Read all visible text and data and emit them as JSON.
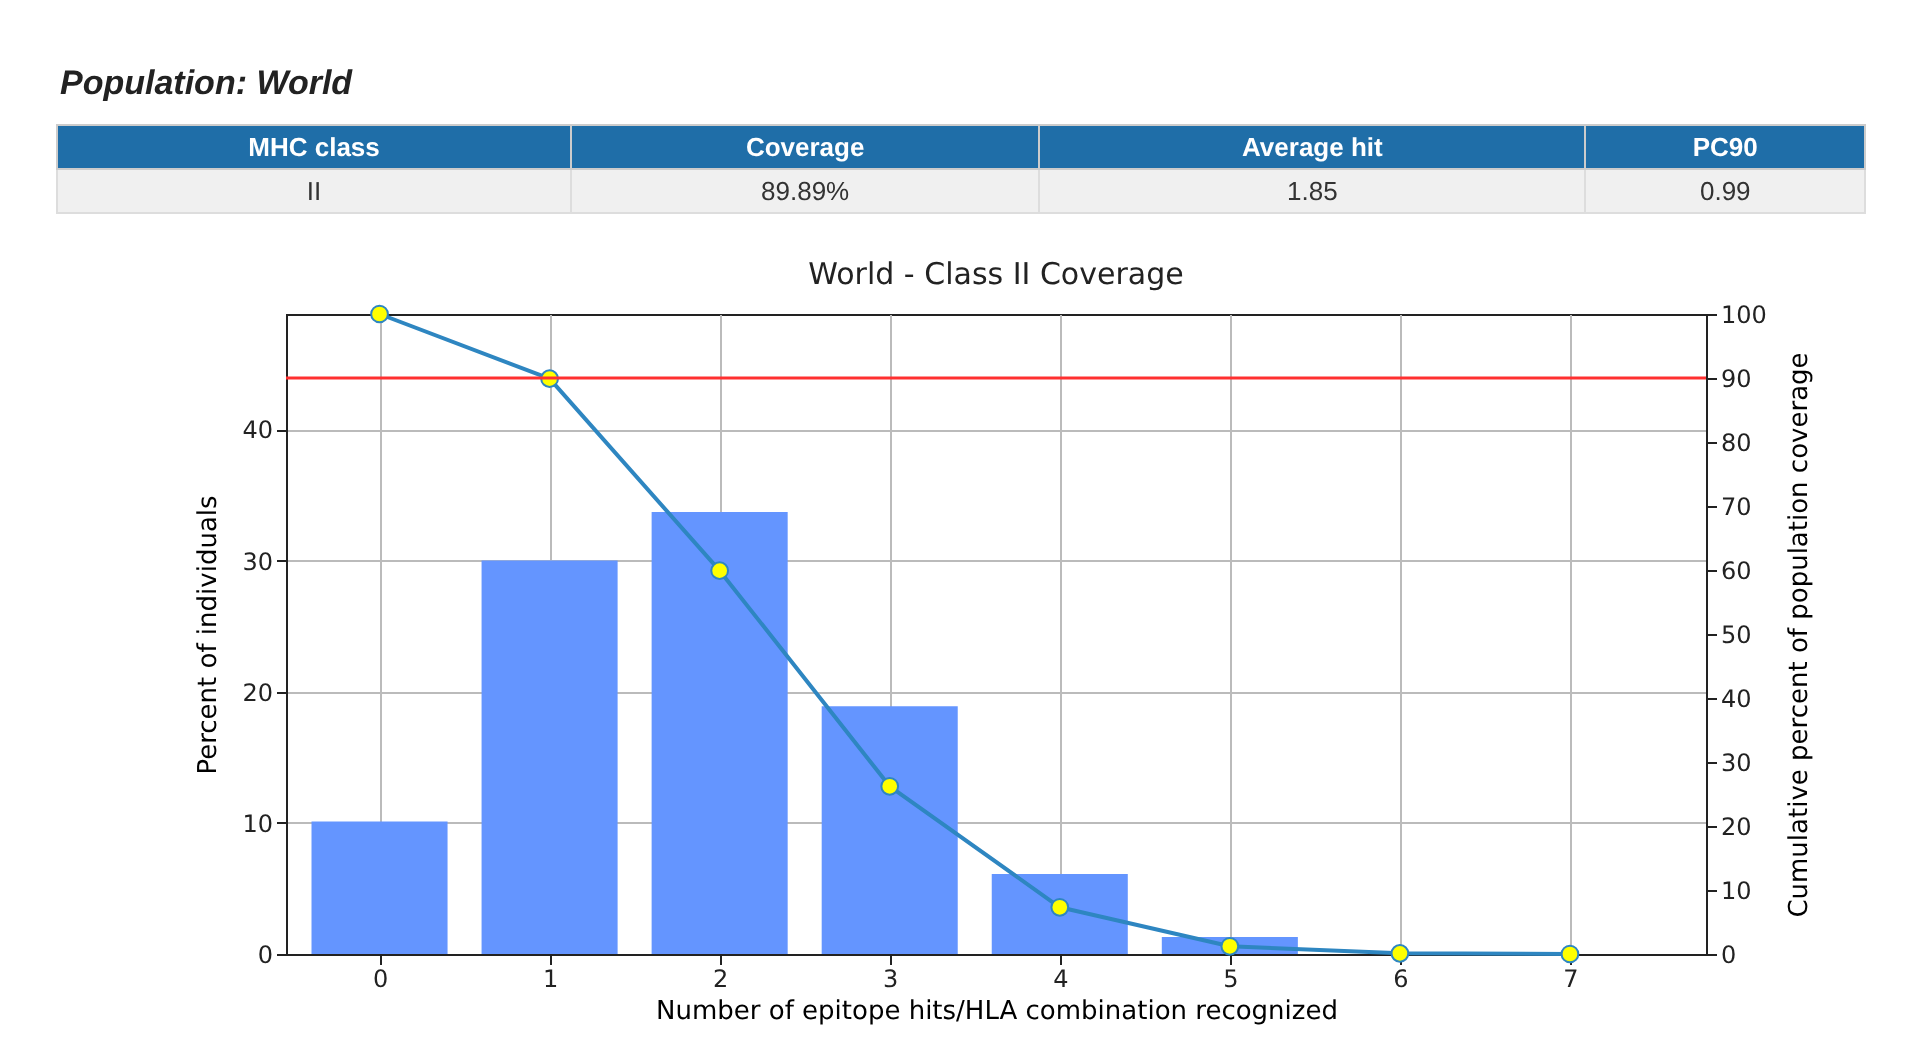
{
  "chart_data": {
    "type": "bar",
    "title": "World - Class II Coverage",
    "xlabel": "Number of epitope hits/HLA combination recognized",
    "ylabel": "Percent of individuals",
    "y2label": "Cumulative percent of population coverage",
    "annotations": [
      "Population: World",
      "MHC class",
      "Coverage",
      "Average hit",
      "PC90",
      "II",
      "89.89%",
      "1.85",
      "0.99"
    ],
    "x": [
      0,
      1,
      2,
      3,
      4,
      5,
      6,
      7
    ],
    "series": [
      {
        "color": "#6495ff",
        "values": [
          10.1,
          30.0,
          33.7,
          18.9,
          6.1,
          1.3,
          null,
          0
        ]
      },
      {
        "type": "line",
        "axis": "y2",
        "color": "#2e86c1",
        "values": [
          100,
          89.9,
          59.9,
          26.2,
          7.3,
          1.2,
          0.1,
          0
        ]
      }
    ],
    "marker": "circle",
    "xlim": [
      -0.55,
      7.8
    ],
    "xticks": [
      0,
      1,
      2,
      3,
      4,
      5,
      6,
      7
    ],
    "ylim": [
      0,
      48.8
    ],
    "yticks": [
      0,
      10,
      20,
      30,
      40
    ],
    "y2lim": [
      0,
      100
    ],
    "y2ticks": [
      0,
      10,
      20,
      30,
      40,
      50,
      60,
      70,
      80,
      90,
      100
    ],
    "ref_lines": [
      {
        "axis": "y2",
        "value": 90,
        "color": "#ff3030"
      }
    ],
    "grid": true
  }
}
